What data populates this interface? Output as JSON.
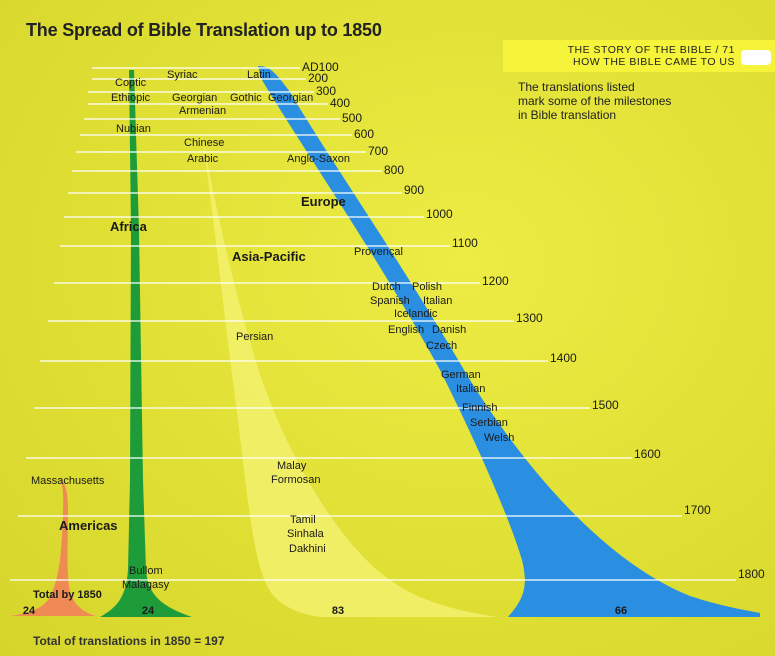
{
  "title": "The Spread of Bible Translation up to 1850",
  "header": {
    "line1": "THE STORY OF THE BIBLE / 71",
    "line2": "HOW THE BIBLE CAME TO US"
  },
  "note": "The translations listed\nmark some of the milestones\nin Bible translation",
  "years": [
    "AD100",
    "200",
    "300",
    "400",
    "500",
    "600",
    "700",
    "800",
    "900",
    "1000",
    "1100",
    "1200",
    "1300",
    "1400",
    "1500",
    "1600",
    "1700",
    "1800"
  ],
  "regions": {
    "africa": "Africa",
    "asia_pacific": "Asia-Pacific",
    "europe": "Europe",
    "americas": "Americas"
  },
  "languages": {
    "africa": [
      "Coptic",
      "Ethiopic",
      "Nubian",
      "Bullom",
      "Malagasy"
    ],
    "asia_pacific": [
      "Syriac",
      "Georgian",
      "Armenian",
      "Chinese",
      "Arabic",
      "Persian",
      "Malay",
      "Formosan",
      "Tamil",
      "Sinhala",
      "Dakhini"
    ],
    "europe": [
      "Latin",
      "Gothic",
      "Georgian",
      "Anglo-Saxon",
      "Provençal",
      "Dutch",
      "Polish",
      "Spanish",
      "Italian",
      "Icelandic",
      "English",
      "Danish",
      "Czech",
      "German",
      "Italian",
      "Finnish",
      "Serbian",
      "Welsh"
    ],
    "americas": [
      "Massachusetts"
    ]
  },
  "totals_1850": {
    "label": "Total by 1850",
    "americas": "24",
    "africa": "24",
    "asia_pacific": "83",
    "europe": "66"
  },
  "footer": "Total of translations in 1850 = 197",
  "colors": {
    "background": "#e3e33a",
    "africa": "#1e9c3a",
    "asia_pacific": "#f2f06a",
    "europe": "#2a8fe0",
    "americas": "#f08a55",
    "lines": "#ffffff"
  }
}
